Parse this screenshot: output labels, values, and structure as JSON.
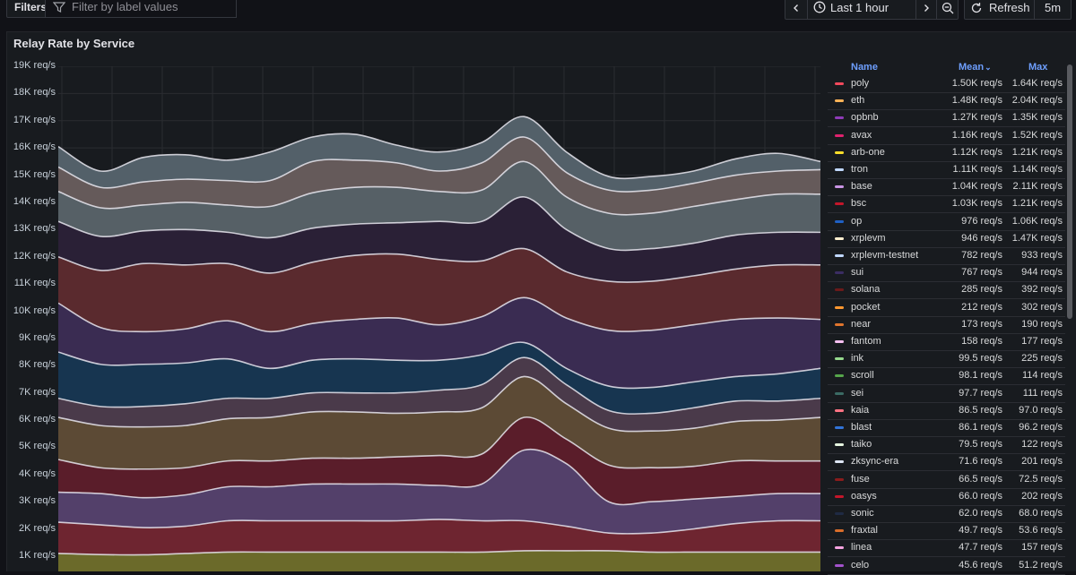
{
  "toolbar": {
    "filters_label": "Filters",
    "filter_placeholder": "Filter by label values",
    "time_range": "Last 1 hour",
    "refresh_label": "Refresh",
    "refresh_interval": "5m",
    "icons": [
      "filter-icon",
      "chevron-left-icon",
      "clock-icon",
      "chevron-right-icon",
      "zoom-out-icon",
      "refresh-icon"
    ]
  },
  "panel": {
    "title": "Relay Rate by Service"
  },
  "legend": {
    "headers": {
      "name": "Name",
      "mean": "Mean",
      "max": "Max"
    },
    "sort_indicator": "⌄",
    "rows": [
      {
        "name": "poly",
        "mean": "1.50K req/s",
        "max": "1.64K req/s",
        "color": "#f2495c"
      },
      {
        "name": "eth",
        "mean": "1.48K req/s",
        "max": "2.04K req/s",
        "color": "#ffb357"
      },
      {
        "name": "opbnb",
        "mean": "1.27K req/s",
        "max": "1.35K req/s",
        "color": "#8f3bb8"
      },
      {
        "name": "avax",
        "mean": "1.16K req/s",
        "max": "1.52K req/s",
        "color": "#e0226e"
      },
      {
        "name": "arb-one",
        "mean": "1.12K req/s",
        "max": "1.21K req/s",
        "color": "#fade2a"
      },
      {
        "name": "tron",
        "mean": "1.11K req/s",
        "max": "1.14K req/s",
        "color": "#c0d8ff"
      },
      {
        "name": "base",
        "mean": "1.04K req/s",
        "max": "2.11K req/s",
        "color": "#ca95e5"
      },
      {
        "name": "bsc",
        "mean": "1.03K req/s",
        "max": "1.21K req/s",
        "color": "#c4162a"
      },
      {
        "name": "op",
        "mean": "976 req/s",
        "max": "1.06K req/s",
        "color": "#1f60c4"
      },
      {
        "name": "xrplevm",
        "mean": "946 req/s",
        "max": "1.47K req/s",
        "color": "#fff0d0"
      },
      {
        "name": "xrplevm-testnet",
        "mean": "782 req/s",
        "max": "933 req/s",
        "color": "#c0d8ff"
      },
      {
        "name": "sui",
        "mean": "767 req/s",
        "max": "944 req/s",
        "color": "#3b2d63"
      },
      {
        "name": "solana",
        "mean": "285 req/s",
        "max": "392 req/s",
        "color": "#6b1a1a"
      },
      {
        "name": "pocket",
        "mean": "212 req/s",
        "max": "302 req/s",
        "color": "#ff9830"
      },
      {
        "name": "near",
        "mean": "173 req/s",
        "max": "190 req/s",
        "color": "#e0752d"
      },
      {
        "name": "fantom",
        "mean": "158 req/s",
        "max": "177 req/s",
        "color": "#f6c0f2"
      },
      {
        "name": "ink",
        "mean": "99.5 req/s",
        "max": "225 req/s",
        "color": "#96d98d"
      },
      {
        "name": "scroll",
        "mean": "98.1 req/s",
        "max": "114 req/s",
        "color": "#56a64b"
      },
      {
        "name": "sei",
        "mean": "97.7 req/s",
        "max": "111 req/s",
        "color": "#3b6b64"
      },
      {
        "name": "kaia",
        "mean": "86.5 req/s",
        "max": "97.0 req/s",
        "color": "#ff7383"
      },
      {
        "name": "blast",
        "mean": "86.1 req/s",
        "max": "96.2 req/s",
        "color": "#3274d9"
      },
      {
        "name": "taiko",
        "mean": "79.5 req/s",
        "max": "122 req/s",
        "color": "#e6f5e0"
      },
      {
        "name": "zksync-era",
        "mean": "71.6 req/s",
        "max": "201 req/s",
        "color": "#dfe7f5"
      },
      {
        "name": "fuse",
        "mean": "66.5 req/s",
        "max": "72.5 req/s",
        "color": "#8a1c1c"
      },
      {
        "name": "oasys",
        "mean": "66.0 req/s",
        "max": "202 req/s",
        "color": "#c4162a"
      },
      {
        "name": "sonic",
        "mean": "62.0 req/s",
        "max": "68.0 req/s",
        "color": "#1f2a44"
      },
      {
        "name": "fraxtal",
        "mean": "49.7 req/s",
        "max": "53.6 req/s",
        "color": "#d96d2a"
      },
      {
        "name": "linea",
        "mean": "47.7 req/s",
        "max": "157 req/s",
        "color": "#f5a3e0"
      },
      {
        "name": "celo",
        "mean": "45.6 req/s",
        "max": "51.2 req/s",
        "color": "#a352cc"
      }
    ]
  },
  "chart_data": {
    "type": "area",
    "stacked": true,
    "title": "Relay Rate by Service",
    "ylabel": "",
    "yticks": [
      "1K req/s",
      "2K req/s",
      "3K req/s",
      "4K req/s",
      "5K req/s",
      "6K req/s",
      "7K req/s",
      "8K req/s",
      "9K req/s",
      "10K req/s",
      "11K req/s",
      "12K req/s",
      "13K req/s",
      "14K req/s",
      "15K req/s",
      "16K req/s",
      "17K req/s",
      "18K req/s",
      "19K req/s"
    ],
    "ylim": [
      0,
      19000
    ],
    "grid": true,
    "legend_placement": "right",
    "x_points": 19,
    "stack_tops": [
      {
        "name": "band-1",
        "color": "#6b6a2a",
        "values": [
          1100,
          1060,
          1050,
          1100,
          1150,
          1150,
          1150,
          1150,
          1150,
          1150,
          1150,
          1200,
          1200,
          1200,
          1150,
          1150,
          1150,
          1150,
          1150
        ]
      },
      {
        "name": "band-2",
        "color": "#6e2530",
        "values": [
          2250,
          2150,
          2050,
          2100,
          2300,
          2300,
          2300,
          2300,
          2300,
          2350,
          2300,
          2300,
          2100,
          1850,
          1850,
          2000,
          2200,
          2300,
          2300
        ]
      },
      {
        "name": "band-3",
        "color": "#53406a",
        "values": [
          3350,
          3300,
          3150,
          3250,
          3550,
          3550,
          3650,
          3650,
          3650,
          3600,
          3650,
          4900,
          4400,
          3000,
          3000,
          3100,
          3200,
          3300,
          3300
        ]
      },
      {
        "name": "band-4",
        "color": "#5a1d2a",
        "values": [
          4550,
          4250,
          4200,
          4250,
          4500,
          4500,
          4600,
          4600,
          4650,
          4700,
          4750,
          6100,
          5300,
          4350,
          4250,
          4300,
          4500,
          4500,
          4500
        ]
      },
      {
        "name": "band-5",
        "color": "#5c4a35",
        "values": [
          6100,
          5800,
          5750,
          5800,
          6050,
          6100,
          6300,
          6300,
          6250,
          6300,
          6450,
          7600,
          6600,
          5700,
          5600,
          5700,
          5950,
          6000,
          6100
        ]
      },
      {
        "name": "band-6",
        "color": "#4a3a4a",
        "values": [
          6800,
          6500,
          6500,
          6600,
          6800,
          6800,
          7000,
          7000,
          7000,
          7100,
          7300,
          8300,
          7300,
          6350,
          6250,
          6450,
          6700,
          6700,
          6800
        ]
      },
      {
        "name": "band-7",
        "color": "#173550",
        "values": [
          8500,
          8050,
          8050,
          8100,
          8250,
          7900,
          8200,
          8250,
          8200,
          8200,
          8400,
          8850,
          7900,
          7250,
          7200,
          7400,
          7600,
          7700,
          7900
        ]
      },
      {
        "name": "band-8",
        "color": "#3a2c52",
        "values": [
          10300,
          9400,
          9250,
          9350,
          9650,
          9250,
          9550,
          9700,
          9750,
          9500,
          9800,
          10500,
          9750,
          9300,
          9300,
          9500,
          9700,
          9750,
          9700
        ]
      },
      {
        "name": "band-9",
        "color": "#5a2a2e",
        "values": [
          12000,
          11500,
          11750,
          11700,
          11750,
          11400,
          11800,
          12050,
          12100,
          11900,
          11850,
          12300,
          11450,
          11100,
          11100,
          11300,
          11550,
          11700,
          11700
        ]
      },
      {
        "name": "band-10",
        "color": "#2a2036",
        "values": [
          13300,
          12750,
          12950,
          13000,
          12900,
          12700,
          13050,
          13200,
          13250,
          13300,
          13300,
          14200,
          13000,
          12300,
          12300,
          12500,
          12800,
          12900,
          12900
        ]
      },
      {
        "name": "band-11",
        "color": "#566066",
        "values": [
          14400,
          13800,
          13900,
          14000,
          13900,
          13850,
          14350,
          14550,
          14550,
          14400,
          14450,
          15500,
          14200,
          13600,
          13600,
          13850,
          14100,
          14300,
          14300
        ]
      },
      {
        "name": "band-12",
        "color": "#655a5a",
        "values": [
          15300,
          14550,
          14750,
          14850,
          14800,
          14800,
          15500,
          15550,
          15450,
          15150,
          15450,
          16400,
          15100,
          14450,
          14450,
          14700,
          15000,
          15150,
          15200
        ]
      },
      {
        "name": "band-13",
        "color": "#536069",
        "values": [
          16050,
          15150,
          15650,
          15750,
          15550,
          15850,
          16400,
          16500,
          16100,
          15850,
          16200,
          17150,
          15850,
          14950,
          14950,
          15150,
          15600,
          15800,
          15500
        ]
      }
    ]
  }
}
